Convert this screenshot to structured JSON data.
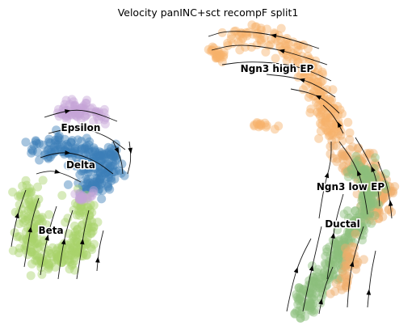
{
  "chart_data": {
    "type": "scatter",
    "title": "Velocity panINC+sct recompF split1",
    "xlabel": "",
    "ylabel": "",
    "grid": false,
    "clusters": [
      {
        "name": "Ngn3 high EP",
        "color": "#f7b16a"
      },
      {
        "name": "Ngn3 low EP",
        "color": "#f0ad6b"
      },
      {
        "name": "Ductal",
        "color": "#8cbf7d"
      },
      {
        "name": "Epsilon",
        "color": "#c6a5d6"
      },
      {
        "name": "Delta",
        "color": "#3b7fb8"
      },
      {
        "name": "Beta",
        "color": "#a9d36b"
      }
    ]
  }
}
